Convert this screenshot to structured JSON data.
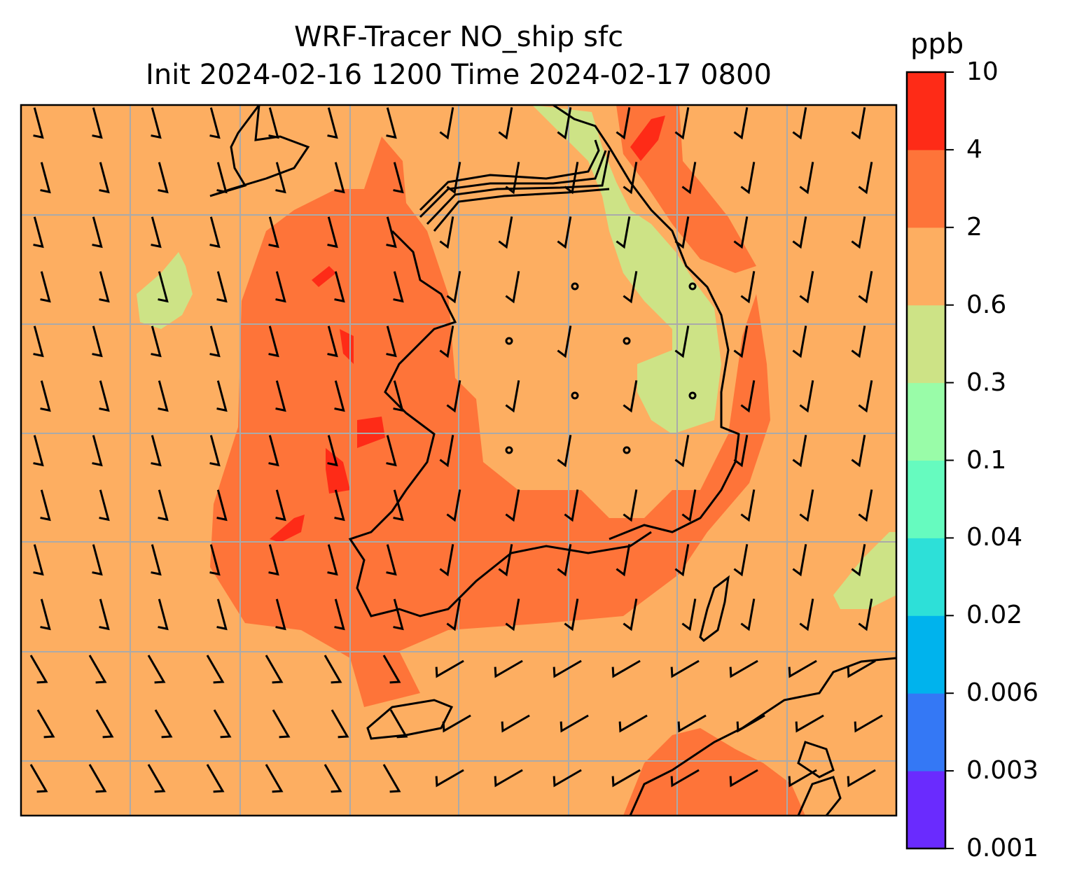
{
  "title": {
    "line1": "WRF-Tracer NO_ship sfc",
    "line2": "Init 2024-02-16 1200 Time 2024-02-17 0800"
  },
  "colorbar": {
    "label": "ppb",
    "ticks": [
      "0.001",
      "0.003",
      "0.006",
      "0.02",
      "0.04",
      "0.1",
      "0.3",
      "0.6",
      "2",
      "4",
      "10"
    ],
    "colors": [
      "#6a2bfe",
      "#3478f5",
      "#00b3ed",
      "#2de0d8",
      "#66fbbf",
      "#99fca8",
      "#cde386",
      "#fdae61",
      "#fe7439",
      "#fe2b17"
    ]
  },
  "map": {
    "background_color": "#fdae61",
    "grid_color": "#aaaaaa"
  }
}
